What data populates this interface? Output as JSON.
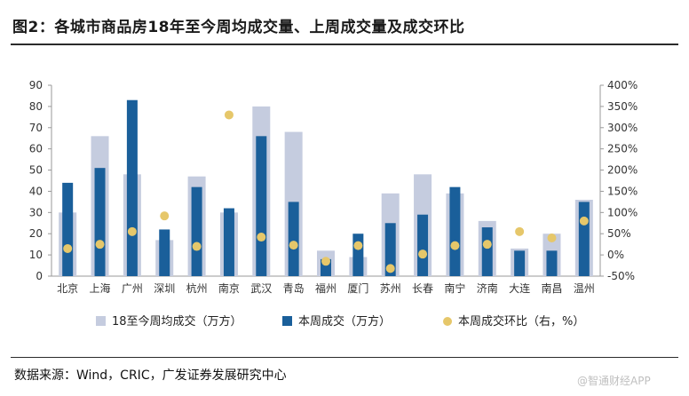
{
  "header": {
    "title": "图2：各城市商品房18年至今周均成交量、上周成交量及成交环比"
  },
  "footer": {
    "source": "数据来源：Wind，CRIC，广发证券发展研究中心",
    "watermark": "@智通财经APP"
  },
  "colors": {
    "avg": "#c5ccdf",
    "week": "#1a5f9a",
    "ratio": "#e6c76a"
  },
  "chart_data": {
    "type": "bar",
    "title": "各城市商品房18年至今周均成交量、上周成交量及成交环比",
    "categories": [
      "北京",
      "上海",
      "广州",
      "深圳",
      "杭州",
      "南京",
      "武汉",
      "青岛",
      "福州",
      "厦门",
      "苏州",
      "长春",
      "南宁",
      "济南",
      "大连",
      "南昌",
      "温州"
    ],
    "series": [
      {
        "name": "18至今周均成交（万方）",
        "type": "bar",
        "axis": "left",
        "values": [
          30,
          66,
          48,
          17,
          47,
          30,
          80,
          68,
          12,
          9,
          39,
          48,
          39,
          26,
          13,
          20,
          36
        ]
      },
      {
        "name": "本周成交（万方）",
        "type": "bar",
        "axis": "left",
        "values": [
          44,
          51,
          83,
          22,
          42,
          32,
          66,
          35,
          8,
          20,
          25,
          29,
          42,
          23,
          12,
          12,
          35
        ]
      },
      {
        "name": "本周成交环比（右，%）",
        "type": "scatter",
        "axis": "right",
        "values": [
          15,
          25,
          55,
          92,
          20,
          330,
          42,
          23,
          -15,
          22,
          -32,
          2,
          22,
          25,
          55,
          40,
          80
        ]
      }
    ],
    "ylim_left": [
      0,
      90
    ],
    "yticks_left": [
      "0",
      "10",
      "20",
      "30",
      "40",
      "50",
      "60",
      "70",
      "80",
      "90"
    ],
    "ylim_right": [
      -50,
      400
    ],
    "yticks_right": [
      "-50%",
      "0%",
      "50%",
      "100%",
      "150%",
      "200%",
      "250%",
      "300%",
      "350%",
      "400%"
    ],
    "legend": [
      "18至今周均成交（万方）",
      "本周成交（万方）",
      "本周成交环比（右，%）"
    ],
    "legend_position": "bottom"
  }
}
